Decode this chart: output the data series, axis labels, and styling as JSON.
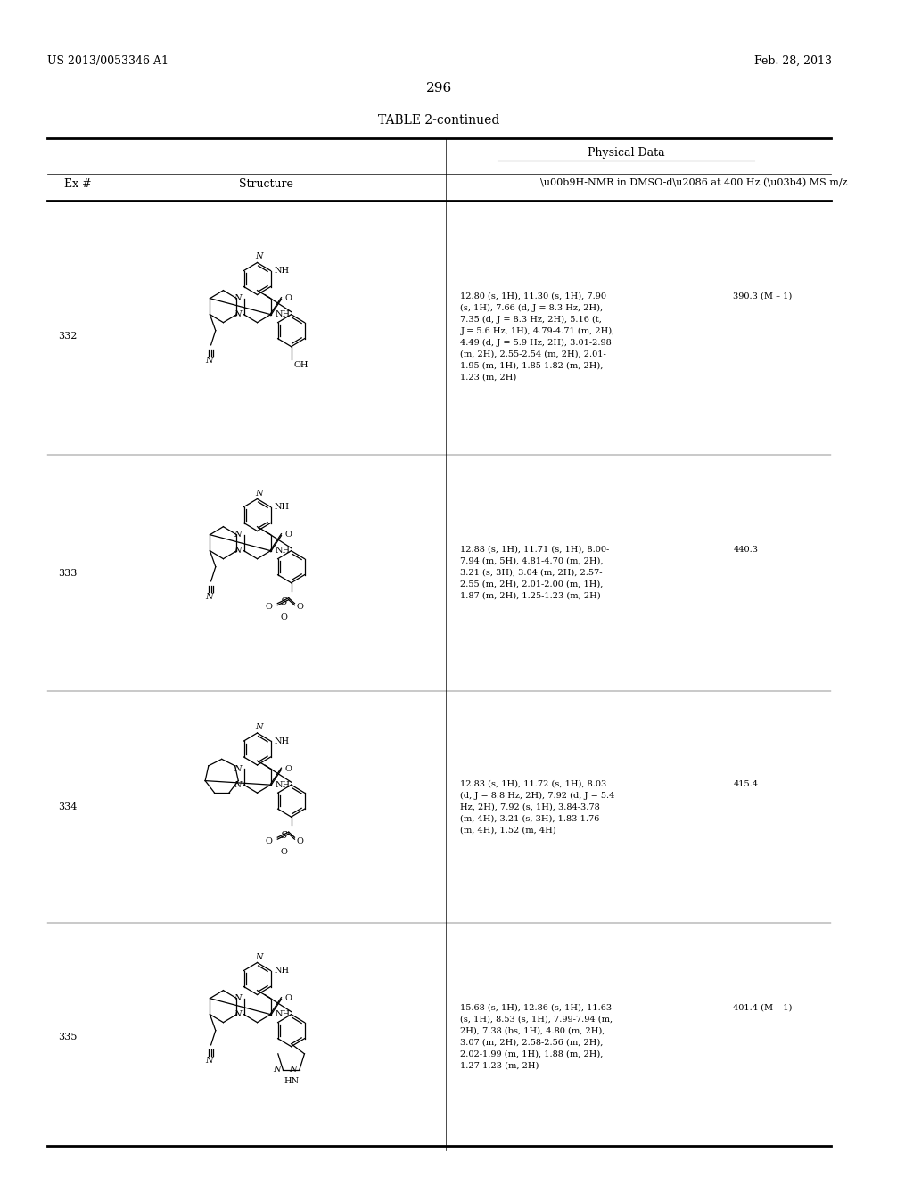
{
  "page_number": "296",
  "patent_left": "US 2013/0053346 A1",
  "patent_right": "Feb. 28, 2013",
  "table_title": "TABLE 2-continued",
  "col_headers": [
    "Ex #",
    "Structure",
    "Physical Data"
  ],
  "sub_header": "\\u00b9H-NMR in DMSO-d\\u2086 at 400 Hz (\\u03b4) MS m/z",
  "physical_data_label": "Physical Data",
  "rows": [
    {
      "ex": "332",
      "nmr": "12.80 (s, 1H), 11.30 (s, 1H), 7.90\n(s, 1H), 7.66 (d, J = 8.3 Hz, 2H),\n7.35 (d, J = 8.3 Hz, 2H), 5.16 (t,\nJ = 5.6 Hz, 1H), 4.79-4.71 (m, 2H),\n4.49 (d, J = 5.9 Hz, 2H), 3.01-2.98\n(m, 2H), 2.55-2.54 (m, 2H), 2.01-\n1.95 (m, 1H), 1.85-1.82 (m, 2H),\n1.23 (m, 2H)",
      "ms": "390.3 (M – 1)"
    },
    {
      "ex": "333",
      "nmr": "12.88 (s, 1H), 11.71 (s, 1H), 8.00-\n7.94 (m, 5H), 4.81-4.70 (m, 2H),\n3.21 (s, 3H), 3.04 (m, 2H), 2.57-\n2.55 (m, 2H), 2.01-2.00 (m, 1H),\n1.87 (m, 2H), 1.25-1.23 (m, 2H)",
      "ms": "440.3"
    },
    {
      "ex": "334",
      "nmr": "12.83 (s, 1H), 11.72 (s, 1H), 8.03\n(d, J = 8.8 Hz, 2H), 7.92 (d, J = 5.4\nHz, 2H), 7.92 (s, 1H), 3.84-3.78\n(m, 4H), 3.21 (s, 3H), 1.83-1.76\n(m, 4H), 1.52 (m, 4H)",
      "ms": "415.4"
    },
    {
      "ex": "335",
      "nmr": "15.68 (s, 1H), 12.86 (s, 1H), 11.63\n(s, 1H), 8.53 (s, 1H), 7.99-7.94 (m,\n2H), 7.38 (bs, 1H), 4.80 (m, 2H),\n3.07 (m, 2H), 2.58-2.56 (m, 2H),\n2.02-1.99 (m, 1H), 1.88 (m, 2H),\n1.27-1.23 (m, 2H)",
      "ms": "401.4 (M – 1)"
    }
  ],
  "bg_color": "#ffffff",
  "text_color": "#000000",
  "font_size_header": 9,
  "font_size_body": 8,
  "font_size_patent": 9,
  "font_size_page": 11,
  "font_size_table_title": 10
}
